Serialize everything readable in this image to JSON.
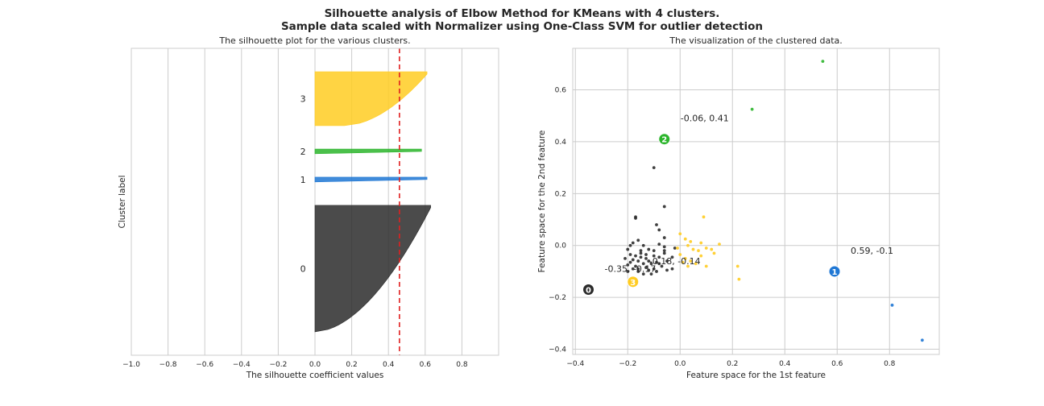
{
  "title_line1": "Silhouette analysis of Elbow Method for KMeans with 4 clusters.",
  "title_line2": "Sample data scaled with Normalizer using One-Class SVM for outlier detection",
  "colors": {
    "cluster_0": "#2b2b2b",
    "cluster_1": "#1f77d4",
    "cluster_2": "#2cb52c",
    "cluster_3": "#ffcc22",
    "avg_line": "#e02020",
    "grid": "#cccccc"
  },
  "chart_data": [
    {
      "type": "area",
      "title": "The silhouette plot for the various clusters.",
      "xlabel": "The silhouette coefficient values",
      "ylabel": "Cluster label",
      "xlim": [
        -1.0,
        1.0
      ],
      "xticks": [
        "−1.0",
        "−0.8",
        "−0.6",
        "−0.4",
        "−0.2",
        "0.0",
        "0.2",
        "0.4",
        "0.6",
        "0.8"
      ],
      "xtick_values": [
        -1.0,
        -0.8,
        -0.6,
        -0.4,
        -0.2,
        0.0,
        0.2,
        0.4,
        0.6,
        0.8
      ],
      "grid": true,
      "average_silhouette": 0.46,
      "clusters": [
        {
          "label": "0",
          "size": 54,
          "max": 0.63,
          "min": 0.0
        },
        {
          "label": "1",
          "size": 2,
          "max": 0.61,
          "min": 0.0
        },
        {
          "label": "2",
          "size": 2,
          "max": 0.58,
          "min": 0.0
        },
        {
          "label": "3",
          "size": 23,
          "max": 0.61,
          "min": 0.16
        }
      ]
    },
    {
      "type": "scatter",
      "title": "The visualization of the clustered data.",
      "xlabel": "Feature space for the 1st feature",
      "ylabel": "Feature space for the 2nd feature",
      "xlim": [
        -0.41,
        0.99
      ],
      "ylim": [
        -0.42,
        0.76
      ],
      "xticks": [
        "−0.4",
        "−0.2",
        "0.0",
        "0.2",
        "0.4",
        "0.6",
        "0.8"
      ],
      "xtick_values": [
        -0.4,
        -0.2,
        0.0,
        0.2,
        0.4,
        0.6,
        0.8
      ],
      "yticks": [
        "−0.4",
        "−0.2",
        "0.0",
        "0.2",
        "0.4",
        "0.6"
      ],
      "ytick_values": [
        -0.4,
        -0.2,
        0.0,
        0.2,
        0.4,
        0.6
      ],
      "grid": true,
      "series": [
        {
          "cluster": 0,
          "points": [
            [
              -0.1,
              0.3
            ],
            [
              -0.06,
              0.15
            ],
            [
              -0.17,
              0.11
            ],
            [
              -0.17,
              0.105
            ],
            [
              -0.09,
              0.08
            ],
            [
              -0.08,
              0.06
            ],
            [
              -0.06,
              0.03
            ],
            [
              -0.16,
              0.02
            ],
            [
              -0.18,
              0.01
            ],
            [
              -0.19,
              0.0
            ],
            [
              -0.14,
              0.0
            ],
            [
              -0.08,
              0.005
            ],
            [
              -0.06,
              -0.005
            ],
            [
              -0.2,
              -0.015
            ],
            [
              -0.15,
              -0.02
            ],
            [
              -0.12,
              -0.015
            ],
            [
              -0.06,
              -0.02
            ],
            [
              -0.02,
              -0.01
            ],
            [
              -0.17,
              -0.04
            ],
            [
              -0.15,
              -0.045
            ],
            [
              -0.13,
              -0.05
            ],
            [
              -0.21,
              -0.05
            ],
            [
              -0.18,
              -0.055
            ],
            [
              -0.1,
              -0.04
            ],
            [
              -0.08,
              -0.045
            ],
            [
              -0.06,
              -0.03
            ],
            [
              -0.16,
              -0.06
            ],
            [
              -0.19,
              -0.065
            ],
            [
              -0.14,
              -0.07
            ],
            [
              -0.11,
              -0.07
            ],
            [
              -0.09,
              -0.065
            ],
            [
              -0.05,
              -0.06
            ],
            [
              -0.03,
              -0.045
            ],
            [
              -0.17,
              -0.08
            ],
            [
              -0.2,
              -0.075
            ],
            [
              -0.13,
              -0.085
            ],
            [
              -0.1,
              -0.09
            ],
            [
              -0.07,
              -0.08
            ],
            [
              -0.03,
              -0.09
            ],
            [
              -0.16,
              -0.1
            ],
            [
              -0.12,
              -0.095
            ],
            [
              -0.09,
              -0.1
            ],
            [
              -0.05,
              -0.095
            ],
            [
              -0.18,
              -0.09
            ],
            [
              -0.14,
              -0.11
            ],
            [
              -0.2,
              -0.1
            ],
            [
              -0.11,
              -0.11
            ],
            [
              -0.15,
              -0.03
            ],
            [
              -0.12,
              -0.06
            ],
            [
              -0.08,
              -0.07
            ],
            [
              -0.19,
              -0.035
            ],
            [
              -0.1,
              -0.02
            ],
            [
              -0.13,
              -0.035
            ],
            [
              -0.16,
              -0.09
            ]
          ]
        },
        {
          "cluster": 1,
          "points": [
            [
              0.81,
              -0.23
            ],
            [
              0.925,
              -0.365
            ]
          ]
        },
        {
          "cluster": 2,
          "points": [
            [
              0.545,
              0.71
            ],
            [
              0.275,
              0.525
            ]
          ]
        },
        {
          "cluster": 3,
          "points": [
            [
              0.09,
              0.11
            ],
            [
              0.0,
              0.045
            ],
            [
              0.02,
              0.025
            ],
            [
              0.04,
              0.015
            ],
            [
              0.08,
              0.01
            ],
            [
              0.1,
              -0.01
            ],
            [
              0.12,
              -0.015
            ],
            [
              0.15,
              0.005
            ],
            [
              0.05,
              -0.015
            ],
            [
              0.07,
              -0.02
            ],
            [
              0.0,
              -0.035
            ],
            [
              0.02,
              -0.05
            ],
            [
              0.04,
              -0.06
            ],
            [
              0.06,
              -0.07
            ],
            [
              0.03,
              -0.08
            ],
            [
              0.1,
              -0.08
            ],
            [
              0.22,
              -0.08
            ],
            [
              0.225,
              -0.13
            ],
            [
              0.01,
              -0.065
            ],
            [
              0.08,
              -0.04
            ],
            [
              -0.01,
              -0.01
            ],
            [
              0.13,
              -0.03
            ],
            [
              0.03,
              0.0
            ]
          ]
        }
      ],
      "centers": [
        {
          "label": "0",
          "x": -0.35,
          "y": -0.17,
          "text": "-0.35, -0.17"
        },
        {
          "label": "1",
          "x": 0.59,
          "y": -0.1,
          "text": "0.59, -0.1"
        },
        {
          "label": "2",
          "x": -0.06,
          "y": 0.41,
          "text": "-0.06, 0.41"
        },
        {
          "label": "3",
          "x": -0.18,
          "y": -0.14,
          "text": "-0.18, -0.14"
        }
      ]
    }
  ]
}
